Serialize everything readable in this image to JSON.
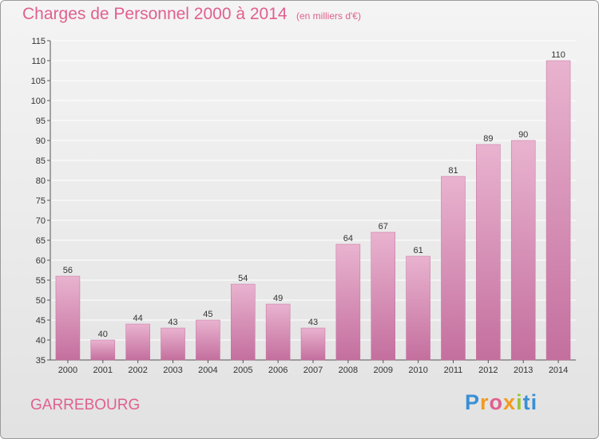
{
  "title": "Charges de Personnel 2000 à 2014",
  "subtitle": "(en milliers d'€)",
  "commune": "GARREBOURG",
  "logo": "Proxiti",
  "colors": {
    "bar": "#d68fb5",
    "bar_dark": "#c46f9e",
    "bar_light": "#e9b3cf",
    "title": "#e0608e",
    "grid": "#ffffff",
    "axis": "#555555"
  },
  "chart_data": {
    "type": "bar",
    "categories": [
      "2000",
      "2001",
      "2002",
      "2003",
      "2004",
      "2005",
      "2006",
      "2007",
      "2008",
      "2009",
      "2010",
      "2011",
      "2012",
      "2013",
      "2014"
    ],
    "values": [
      56,
      40,
      44,
      43,
      45,
      54,
      49,
      43,
      64,
      67,
      61,
      81,
      89,
      90,
      110
    ],
    "ylim": [
      35,
      115
    ],
    "yticks": [
      35,
      40,
      45,
      50,
      55,
      60,
      65,
      70,
      75,
      80,
      85,
      90,
      95,
      100,
      105,
      110,
      115
    ],
    "grid": true,
    "title": "Charges de Personnel 2000 à 2014",
    "subtitle": "(en milliers d'€)",
    "xlabel": "",
    "ylabel": ""
  }
}
